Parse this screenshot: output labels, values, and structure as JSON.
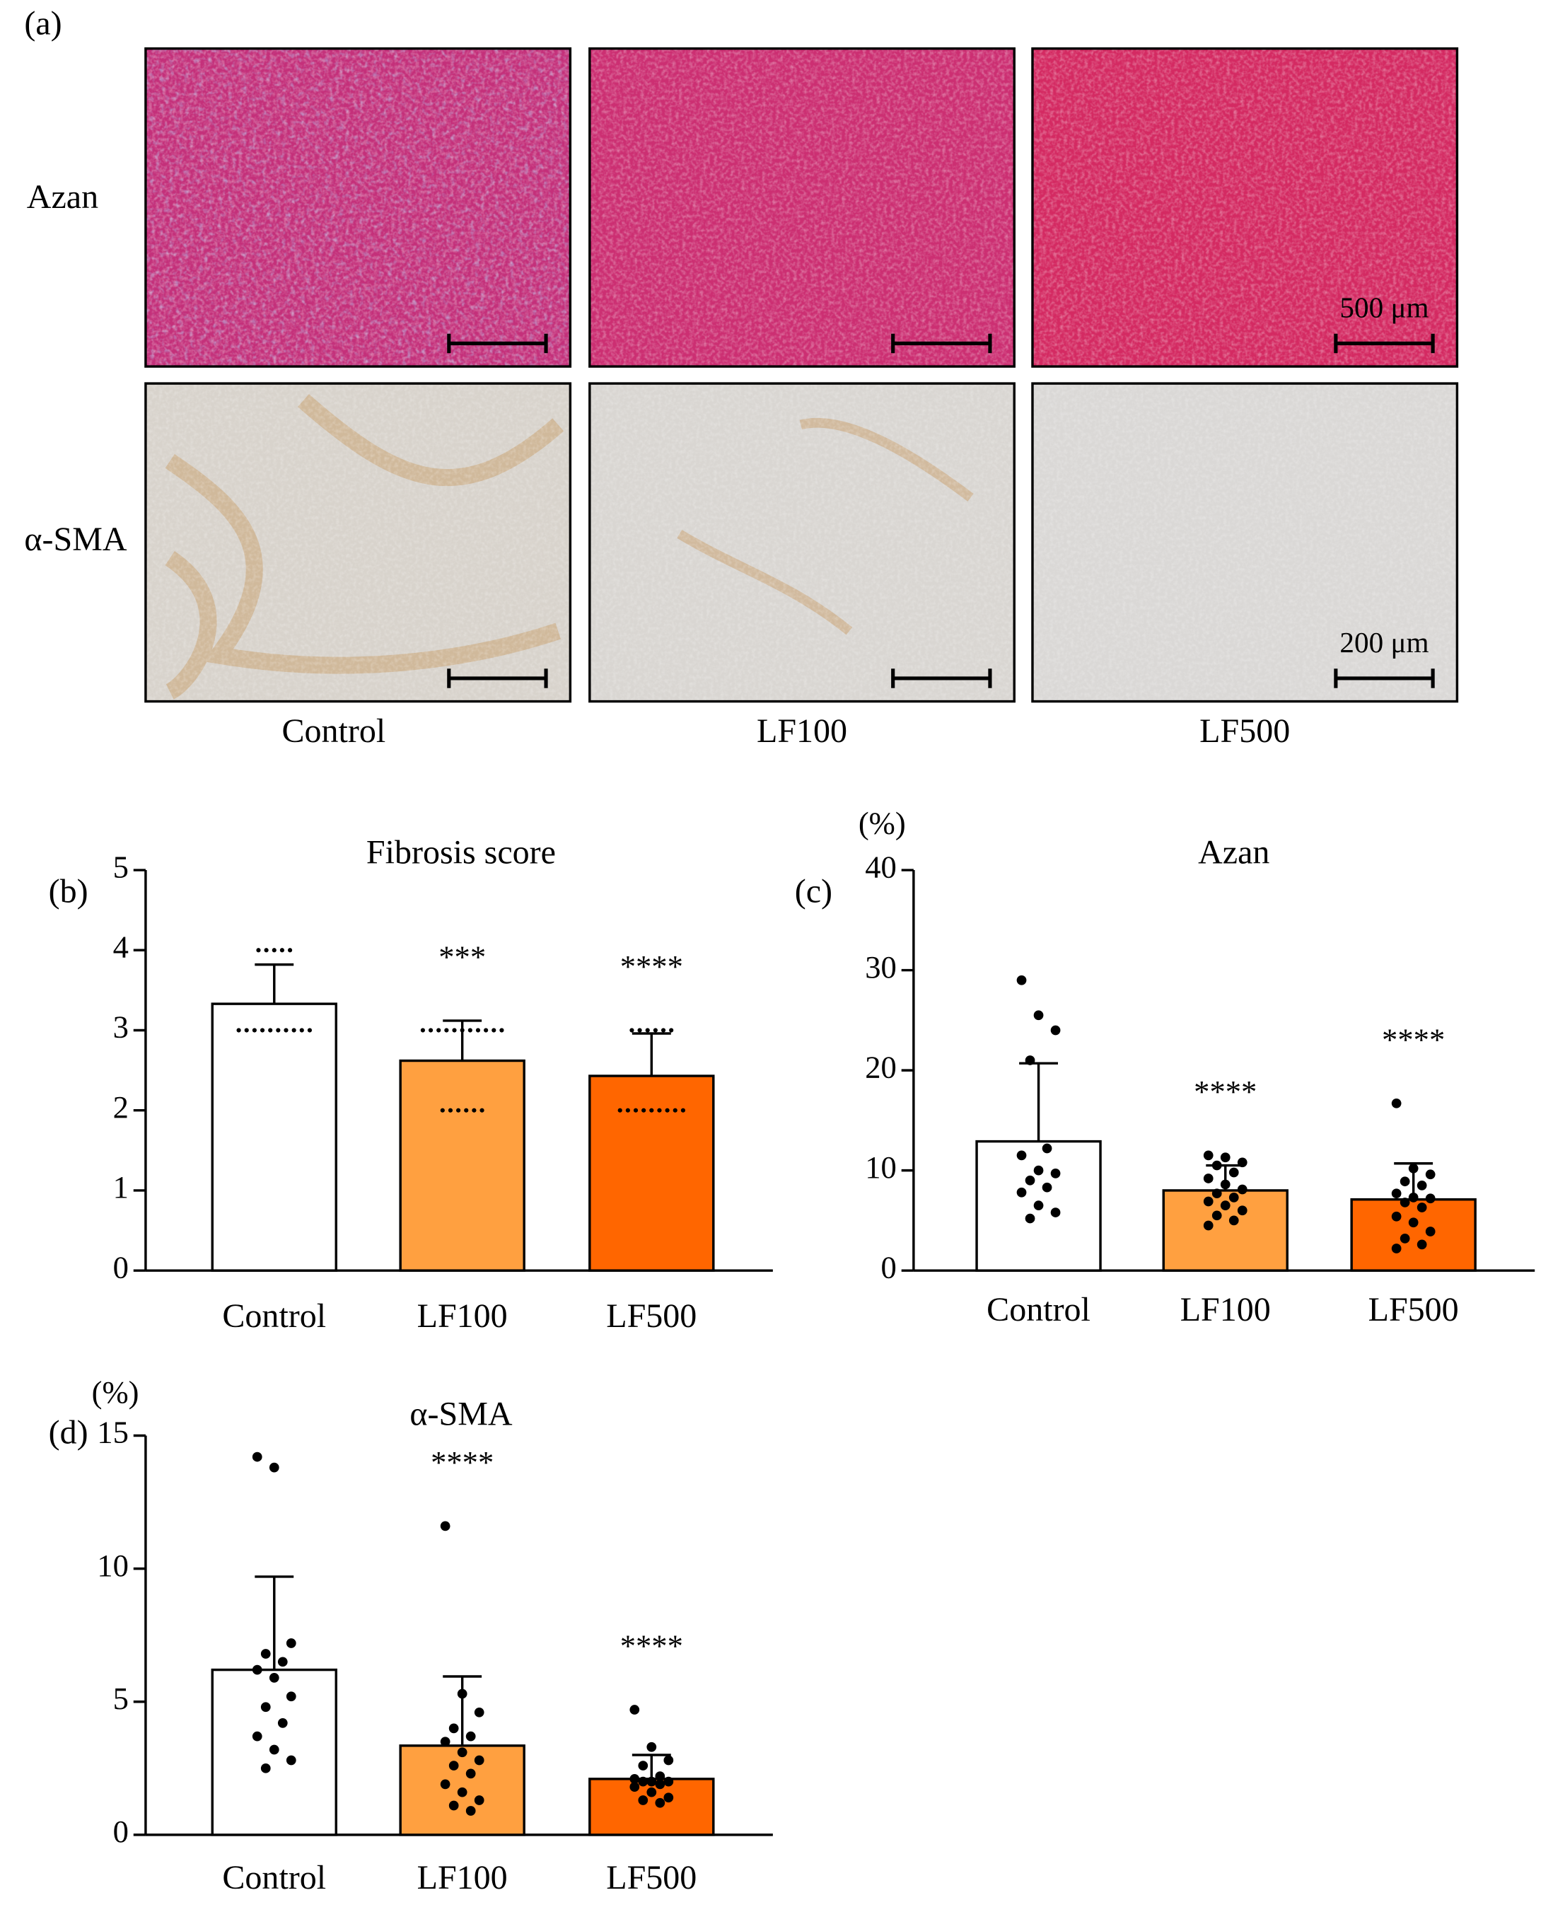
{
  "panel_a": {
    "label": "(a)",
    "rows": [
      "Azan",
      "α-SMA"
    ],
    "columns": [
      "Control",
      "LF100",
      "LF500"
    ],
    "scale_bars": [
      "500 μm",
      "200 μm"
    ]
  },
  "chart_data": [
    {
      "type": "bar",
      "label": "(b)",
      "title": "Fibrosis score",
      "categories": [
        "Control",
        "LF100",
        "LF500"
      ],
      "colors": [
        "#ffffff",
        "#ffa040",
        "#ff6600"
      ],
      "values": [
        3.33,
        2.62,
        2.43
      ],
      "errors": [
        0.49,
        0.5,
        0.53
      ],
      "points": [
        [
          4,
          4,
          4,
          4,
          4,
          3,
          3,
          3,
          3,
          3,
          3,
          3,
          3,
          3,
          3
        ],
        [
          3,
          3,
          3,
          3,
          3,
          3,
          3,
          3,
          3,
          3,
          3,
          2,
          2,
          2,
          2,
          2,
          2
        ],
        [
          3,
          3,
          3,
          3,
          3,
          3,
          2,
          2,
          2,
          2,
          2,
          2,
          2,
          2,
          2
        ]
      ],
      "annotations": [
        null,
        "***",
        "****"
      ],
      "ylim": [
        0,
        5
      ],
      "yticks": [
        0,
        1,
        2,
        3,
        4,
        5
      ]
    },
    {
      "type": "bar",
      "label": "(c)",
      "title": "Azan",
      "y_unit": "(%)",
      "categories": [
        "Control",
        "LF100",
        "LF500"
      ],
      "colors": [
        "#ffffff",
        "#ffa040",
        "#ff6600"
      ],
      "values": [
        12.9,
        8.0,
        7.1
      ],
      "errors": [
        7.8,
        2.5,
        3.6
      ],
      "points": [
        [
          29,
          25.5,
          24,
          21,
          12.2,
          11.5,
          10,
          9.7,
          9,
          8.3,
          7.8,
          6.5,
          5.8,
          5.2
        ],
        [
          11.5,
          11.3,
          10.8,
          10.5,
          9.8,
          9.2,
          8.6,
          8.1,
          7.7,
          7.3,
          6.9,
          6.5,
          6.0,
          5.5,
          5.0,
          4.5
        ],
        [
          16.7,
          10.2,
          9.6,
          8.9,
          8.5,
          7.7,
          7.3,
          7.2,
          6.8,
          6.3,
          5.4,
          4.8,
          3.9,
          3.2,
          2.6,
          2.2
        ]
      ],
      "annotations": [
        null,
        "****",
        "****"
      ],
      "ylim": [
        0,
        40
      ],
      "yticks": [
        0,
        10,
        20,
        30,
        40
      ]
    },
    {
      "type": "bar",
      "label": "(d)",
      "title": "α-SMA",
      "y_unit": "(%)",
      "categories": [
        "Control",
        "LF100",
        "LF500"
      ],
      "colors": [
        "#ffffff",
        "#ffa040",
        "#ff6600"
      ],
      "values": [
        6.2,
        3.35,
        2.1
      ],
      "errors": [
        3.5,
        2.6,
        0.9
      ],
      "points": [
        [
          14.2,
          13.8,
          7.2,
          6.8,
          6.5,
          6.2,
          5.9,
          5.2,
          4.8,
          4.2,
          3.7,
          3.2,
          2.8,
          2.5
        ],
        [
          11.6,
          5.3,
          4.6,
          4.0,
          3.7,
          3.5,
          3.1,
          2.8,
          2.6,
          2.3,
          1.9,
          1.6,
          1.3,
          1.1,
          0.9
        ],
        [
          4.7,
          3.3,
          2.8,
          2.6,
          2.2,
          2.1,
          2.0,
          2.0,
          2.0,
          1.9,
          1.8,
          1.6,
          1.4,
          1.3,
          1.2
        ]
      ],
      "annotations": [
        null,
        "****",
        "****"
      ],
      "ylim": [
        0,
        15
      ],
      "yticks": [
        0,
        5,
        10,
        15
      ]
    }
  ]
}
